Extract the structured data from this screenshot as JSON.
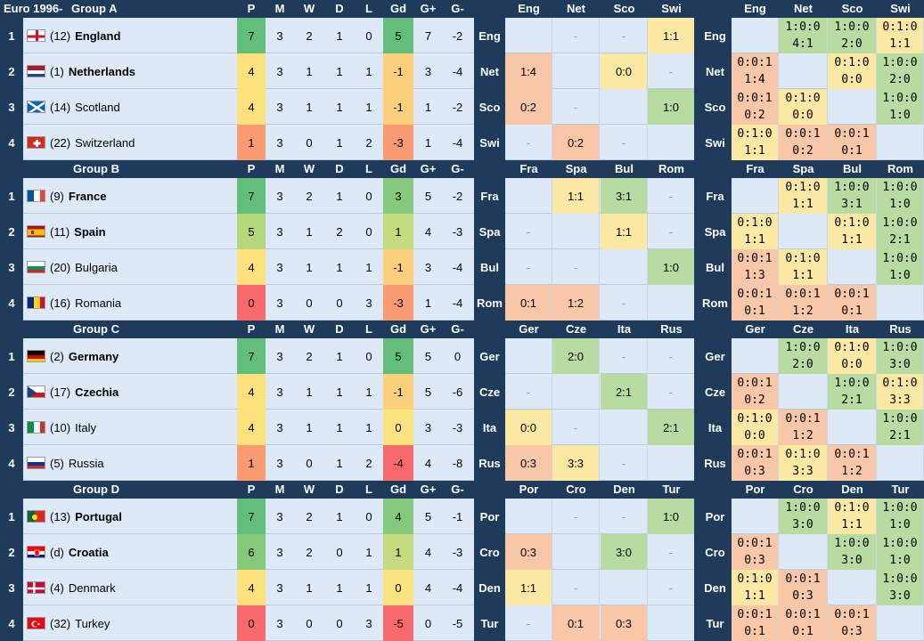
{
  "title": "Euro 1996",
  "columns": [
    "P",
    "M",
    "W",
    "D",
    "L",
    "Gd",
    "G+",
    "G-"
  ],
  "colors": {
    "header": "#1f3b5c",
    "row_bg": "#dde9f6",
    "win": "#b7dba0",
    "draw": "#fbe9a3",
    "loss": "#f8c7a7",
    "points_high": "#63be7b",
    "points_low": "#f8696b"
  },
  "groups": [
    {
      "name": "Group A",
      "abbrs": [
        "Eng",
        "Net",
        "Sco",
        "Swi"
      ],
      "teams": [
        {
          "rank": "1",
          "seed": "(12)",
          "name": "England",
          "bold": true,
          "flag": "england-flag-icon",
          "stats": [
            "7",
            "3",
            "2",
            "1",
            "0",
            "5",
            "7",
            "-2"
          ]
        },
        {
          "rank": "2",
          "seed": "(1)",
          "name": "Netherlands",
          "bold": true,
          "flag": "netherlands-flag-icon",
          "stats": [
            "4",
            "3",
            "1",
            "1",
            "1",
            "-1",
            "3",
            "-4"
          ]
        },
        {
          "rank": "3",
          "seed": "(14)",
          "name": "Scotland",
          "bold": false,
          "flag": "scotland-flag-icon",
          "stats": [
            "4",
            "3",
            "1",
            "1",
            "1",
            "-1",
            "1",
            "-2"
          ]
        },
        {
          "rank": "4",
          "seed": "(22)",
          "name": "Switzerland",
          "bold": false,
          "flag": "switzerland-flag-icon",
          "stats": [
            "1",
            "3",
            "0",
            "1",
            "2",
            "-3",
            "1",
            "-4"
          ]
        }
      ],
      "matrix": [
        [
          "",
          "-",
          "-",
          "1:1"
        ],
        [
          "1:4",
          "",
          "0:0",
          "-"
        ],
        [
          "0:2",
          "-",
          "",
          "1:0"
        ],
        [
          "-",
          "0:2",
          "-",
          ""
        ]
      ],
      "odds": [
        [
          "",
          "1:0:0|4:1",
          "1:0:0|2:0",
          "0:1:0|1:1"
        ],
        [
          "0:0:1|1:4",
          "",
          "0:1:0|0:0",
          "1:0:0|2:0"
        ],
        [
          "0:0:1|0:2",
          "0:1:0|0:0",
          "",
          "1:0:0|1:0"
        ],
        [
          "0:1:0|1:1",
          "0:0:1|0:2",
          "0:0:1|0:1",
          ""
        ]
      ]
    },
    {
      "name": "Group B",
      "abbrs": [
        "Fra",
        "Spa",
        "Bul",
        "Rom"
      ],
      "teams": [
        {
          "rank": "1",
          "seed": "(9)",
          "name": "France",
          "bold": true,
          "flag": "france-flag-icon",
          "stats": [
            "7",
            "3",
            "2",
            "1",
            "0",
            "3",
            "5",
            "-2"
          ]
        },
        {
          "rank": "2",
          "seed": "(11)",
          "name": "Spain",
          "bold": true,
          "flag": "spain-flag-icon",
          "stats": [
            "5",
            "3",
            "1",
            "2",
            "0",
            "1",
            "4",
            "-3"
          ]
        },
        {
          "rank": "3",
          "seed": "(20)",
          "name": "Bulgaria",
          "bold": false,
          "flag": "bulgaria-flag-icon",
          "stats": [
            "4",
            "3",
            "1",
            "1",
            "1",
            "-1",
            "3",
            "-4"
          ]
        },
        {
          "rank": "4",
          "seed": "(16)",
          "name": "Romania",
          "bold": false,
          "flag": "romania-flag-icon",
          "stats": [
            "0",
            "3",
            "0",
            "0",
            "3",
            "-3",
            "1",
            "-4"
          ]
        }
      ],
      "matrix": [
        [
          "",
          "1:1",
          "3:1",
          "-"
        ],
        [
          "-",
          "",
          "1:1",
          "-"
        ],
        [
          "-",
          "-",
          "",
          "1:0"
        ],
        [
          "0:1",
          "1:2",
          "-",
          ""
        ]
      ],
      "odds": [
        [
          "",
          "0:1:0|1:1",
          "1:0:0|3:1",
          "1:0:0|1:0"
        ],
        [
          "0:1:0|1:1",
          "",
          "0:1:0|1:1",
          "1:0:0|2:1"
        ],
        [
          "0:0:1|1:3",
          "0:1:0|1:1",
          "",
          "1:0:0|1:0"
        ],
        [
          "0:0:1|0:1",
          "0:0:1|1:2",
          "0:0:1|0:1",
          ""
        ]
      ]
    },
    {
      "name": "Group C",
      "abbrs": [
        "Ger",
        "Cze",
        "Ita",
        "Rus"
      ],
      "teams": [
        {
          "rank": "1",
          "seed": "(2)",
          "name": "Germany",
          "bold": true,
          "flag": "germany-flag-icon",
          "stats": [
            "7",
            "3",
            "2",
            "1",
            "0",
            "5",
            "5",
            "0"
          ]
        },
        {
          "rank": "2",
          "seed": "(17)",
          "name": "Czechia",
          "bold": true,
          "flag": "czechia-flag-icon",
          "stats": [
            "4",
            "3",
            "1",
            "1",
            "1",
            "-1",
            "5",
            "-6"
          ]
        },
        {
          "rank": "3",
          "seed": "(10)",
          "name": "Italy",
          "bold": false,
          "flag": "italy-flag-icon",
          "stats": [
            "4",
            "3",
            "1",
            "1",
            "1",
            "0",
            "3",
            "-3"
          ]
        },
        {
          "rank": "4",
          "seed": "(5)",
          "name": "Russia",
          "bold": false,
          "flag": "russia-flag-icon",
          "stats": [
            "1",
            "3",
            "0",
            "1",
            "2",
            "-4",
            "4",
            "-8"
          ]
        }
      ],
      "matrix": [
        [
          "",
          "2:0",
          "-",
          "-"
        ],
        [
          "-",
          "",
          "2:1",
          "-"
        ],
        [
          "0:0",
          "-",
          "",
          "2:1"
        ],
        [
          "0:3",
          "3:3",
          "-",
          ""
        ]
      ],
      "odds": [
        [
          "",
          "1:0:0|2:0",
          "0:1:0|0:0",
          "1:0:0|3:0"
        ],
        [
          "0:0:1|0:2",
          "",
          "1:0:0|2:1",
          "0:1:0|3:3"
        ],
        [
          "0:1:0|0:0",
          "0:0:1|1:2",
          "",
          "1:0:0|2:1"
        ],
        [
          "0:0:1|0:3",
          "0:1:0|3:3",
          "0:0:1|1:2",
          ""
        ]
      ]
    },
    {
      "name": "Group D",
      "abbrs": [
        "Por",
        "Cro",
        "Den",
        "Tur"
      ],
      "teams": [
        {
          "rank": "1",
          "seed": "(13)",
          "name": "Portugal",
          "bold": true,
          "flag": "portugal-flag-icon",
          "stats": [
            "7",
            "3",
            "2",
            "1",
            "0",
            "4",
            "5",
            "-1"
          ]
        },
        {
          "rank": "2",
          "seed": "(d)",
          "name": "Croatia",
          "bold": true,
          "flag": "croatia-flag-icon",
          "stats": [
            "6",
            "3",
            "2",
            "0",
            "1",
            "1",
            "4",
            "-3"
          ]
        },
        {
          "rank": "3",
          "seed": "(4)",
          "name": "Denmark",
          "bold": false,
          "flag": "denmark-flag-icon",
          "stats": [
            "4",
            "3",
            "1",
            "1",
            "1",
            "0",
            "4",
            "-4"
          ]
        },
        {
          "rank": "4",
          "seed": "(32)",
          "name": "Turkey",
          "bold": false,
          "flag": "turkey-flag-icon",
          "stats": [
            "0",
            "3",
            "0",
            "0",
            "3",
            "-5",
            "0",
            "-5"
          ]
        }
      ],
      "matrix": [
        [
          "",
          "-",
          "-",
          "1:0"
        ],
        [
          "0:3",
          "",
          "3:0",
          "-"
        ],
        [
          "1:1",
          "-",
          "",
          "-"
        ],
        [
          "-",
          "0:1",
          "0:3",
          ""
        ]
      ],
      "odds": [
        [
          "",
          "1:0:0|3:0",
          "0:1:0|1:1",
          "1:0:0|1:0"
        ],
        [
          "0:0:1|0:3",
          "",
          "1:0:0|3:0",
          "1:0:0|1:0"
        ],
        [
          "0:1:0|1:1",
          "0:0:1|0:3",
          "",
          "1:0:0|3:0"
        ],
        [
          "0:0:1|0:1",
          "0:0:1|0:1",
          "0:0:1|0:3",
          ""
        ]
      ]
    }
  ]
}
